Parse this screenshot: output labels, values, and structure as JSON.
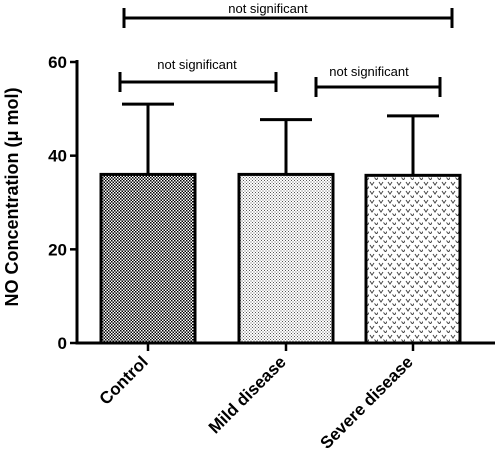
{
  "chart_data": {
    "type": "bar",
    "categories": [
      "Control",
      "Mild disease",
      "Severe disease"
    ],
    "values": [
      36,
      36,
      35.8
    ],
    "errors_upper": [
      51,
      47.7,
      48.5
    ],
    "ylabel": "NO Concentration (μ mol)",
    "xlabel": "",
    "ylim": [
      0,
      60
    ],
    "yticks": [
      0,
      20,
      40,
      60
    ],
    "grid": false,
    "patterns": [
      "dense-checker",
      "fine-dots",
      "sparse-v"
    ],
    "significance": [
      {
        "from": "Control",
        "to": "Severe disease",
        "label": "not significant"
      },
      {
        "from": "Control",
        "to": "Mild disease",
        "label": "not significant"
      },
      {
        "from": "Mild disease",
        "to": "Severe disease",
        "label": "not significant"
      }
    ]
  }
}
